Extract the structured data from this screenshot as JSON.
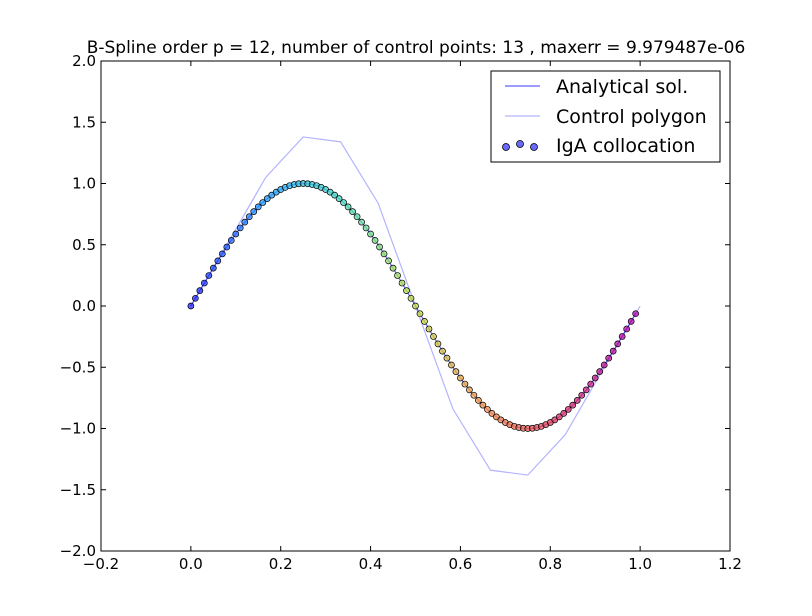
{
  "chart_data": {
    "type": "line",
    "title": "B-Spline order p = 12, number of control points: 13 , maxerr = 9.979487e-06",
    "xlabel": "",
    "ylabel": "",
    "xlim": [
      -0.2,
      1.2
    ],
    "ylim": [
      -2.0,
      2.0
    ],
    "x_ticks": [
      "−0.2",
      "0.0",
      "0.2",
      "0.4",
      "0.6",
      "0.8",
      "1.0",
      "1.2"
    ],
    "y_ticks": [
      "−2.0",
      "−1.5",
      "−1.0",
      "−0.5",
      "0.0",
      "0.5",
      "1.0",
      "1.5",
      "2.0"
    ],
    "legend_position": "top-right",
    "grid": false,
    "series": [
      {
        "name": "Analytical sol.",
        "kind": "line",
        "color": "#0000ff",
        "function": "sin(2*pi*x)",
        "x_range": [
          0.0,
          0.99
        ]
      },
      {
        "name": "Control polygon",
        "kind": "line",
        "color": "#b3b3ff",
        "x": [
          0.0,
          0.0833,
          0.1667,
          0.25,
          0.3333,
          0.4167,
          0.5,
          0.5833,
          0.6667,
          0.75,
          0.8333,
          0.9167,
          1.0
        ],
        "y": [
          0.0,
          0.52,
          1.05,
          1.38,
          1.34,
          0.84,
          0.0,
          -0.84,
          -1.34,
          -1.38,
          -1.05,
          -0.52,
          0.0
        ]
      },
      {
        "name": "IgA collocation",
        "kind": "scatter",
        "color": "#0000ff",
        "point_count": 100,
        "x_range": [
          0.0,
          0.99
        ],
        "function": "sin(2*pi*x)",
        "colormap": [
          "#2020ff",
          "#20a0ff",
          "#40e0c0",
          "#c0e040",
          "#ff9040",
          "#e03060",
          "#b000b0"
        ]
      }
    ]
  },
  "legend": {
    "items": [
      {
        "label": "Analytical sol."
      },
      {
        "label": "Control polygon"
      },
      {
        "label": "IgA collocation"
      }
    ]
  }
}
